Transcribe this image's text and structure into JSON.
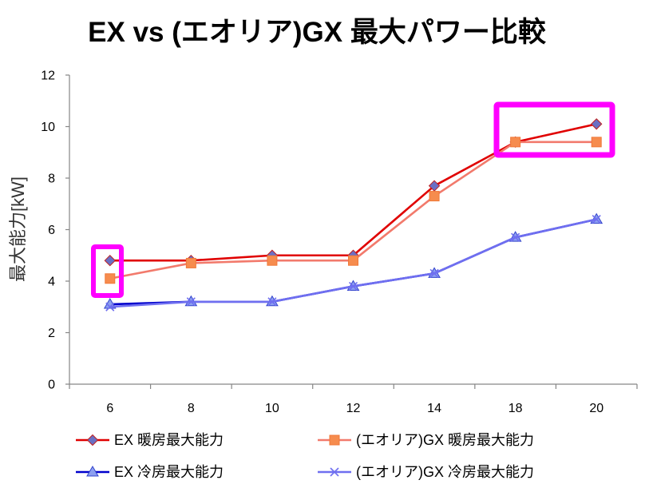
{
  "chart_data": {
    "type": "line",
    "title": "EX vs (エオリア)GX 最大パワー比較",
    "ylabel": "最大能力[kW]",
    "categories": [
      "6",
      "8",
      "10",
      "12",
      "14",
      "18",
      "20"
    ],
    "ylim": [
      0,
      12
    ],
    "yticks": [
      0,
      2,
      4,
      6,
      8,
      10,
      12
    ],
    "grid": false,
    "legend": "bottom",
    "highlight_color": "#ff00ff",
    "series": [
      {
        "name": "EX 暖房最大能力",
        "values": [
          4.8,
          4.8,
          5.0,
          5.0,
          7.7,
          9.4,
          10.1
        ],
        "line_color": "#e00000",
        "marker": "diamond",
        "marker_fill": "#6a6fc4",
        "marker_edge": "#c02020"
      },
      {
        "name": "(エオリア)GX 暖房最大能力",
        "values": [
          4.1,
          4.7,
          4.8,
          4.8,
          7.3,
          9.4,
          9.4
        ],
        "line_color": "#f27a6c",
        "marker": "square",
        "marker_fill": "#f68c4e",
        "marker_edge": "#f07838"
      },
      {
        "name": "EX 冷房最大能力",
        "values": [
          3.1,
          3.2,
          3.2,
          3.8,
          4.3,
          5.7,
          6.4
        ],
        "line_color": "#0000cc",
        "marker": "triangle",
        "marker_fill": "#8c9ff0",
        "marker_edge": "#3344cc"
      },
      {
        "name": "(エオリア)GX 冷房最大能力",
        "values": [
          3.0,
          3.2,
          3.2,
          3.8,
          4.3,
          5.7,
          6.4
        ],
        "line_color": "#6f6ff0",
        "marker": "x",
        "marker_fill": "#6f6ff0",
        "marker_edge": "#6f6ff0"
      }
    ]
  }
}
